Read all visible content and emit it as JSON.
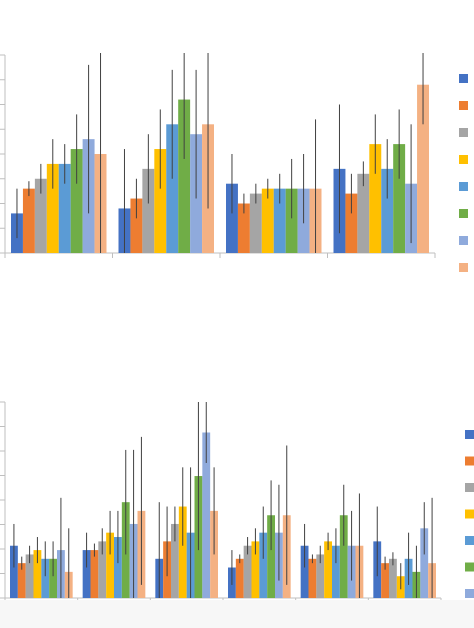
{
  "palette": [
    "#4472c4",
    "#ed7d31",
    "#a5a5a5",
    "#ffc000",
    "#5b9bd5",
    "#70ad47",
    "#8faadc",
    "#f4b183"
  ],
  "chart_data": [
    {
      "type": "bar",
      "title": "",
      "xlabel": "",
      "ylabel": "",
      "ylim": [
        0,
        8
      ],
      "grid": false,
      "legend_placement": "right",
      "categories": [
        "",
        "",
        "",
        ""
      ],
      "series": [
        {
          "values": [
            1.6,
            1.8,
            2.8,
            3.4
          ],
          "err": [
            1.0,
            2.4,
            1.2,
            2.6
          ]
        },
        {
          "values": [
            2.6,
            2.2,
            2.0,
            2.4
          ],
          "err": [
            0.3,
            0.8,
            0.4,
            0.8
          ]
        },
        {
          "values": [
            3.0,
            3.4,
            2.4,
            3.2
          ],
          "err": [
            0.6,
            1.4,
            0.4,
            0.5
          ]
        },
        {
          "values": [
            3.6,
            4.2,
            2.6,
            4.4
          ],
          "err": [
            1.0,
            1.6,
            0.4,
            1.2
          ]
        },
        {
          "values": [
            3.6,
            5.2,
            2.6,
            3.4
          ],
          "err": [
            0.8,
            2.2,
            0.6,
            1.2
          ]
        },
        {
          "values": [
            4.2,
            6.2,
            2.6,
            4.4
          ],
          "err": [
            1.4,
            2.4,
            1.2,
            1.4
          ]
        },
        {
          "values": [
            4.6,
            4.8,
            2.6,
            2.8
          ],
          "err": [
            3.0,
            2.6,
            1.4,
            2.4
          ]
        },
        {
          "values": [
            4.0,
            5.2,
            2.6,
            6.8
          ],
          "err": [
            4.4,
            3.4,
            2.8,
            1.6
          ]
        }
      ]
    },
    {
      "type": "bar",
      "title": "",
      "xlabel": "",
      "ylabel": "",
      "ylim": [
        0,
        9
      ],
      "grid": false,
      "legend_placement": "right",
      "categories": [
        "",
        "",
        "",
        "",
        "",
        ""
      ],
      "series": [
        {
          "values": [
            2.4,
            2.2,
            1.8,
            1.4,
            2.4,
            2.6
          ],
          "err": [
            1.0,
            0.8,
            2.6,
            0.8,
            1.0,
            1.6
          ]
        },
        {
          "values": [
            1.6,
            2.2,
            2.6,
            1.8,
            1.8,
            1.6
          ],
          "err": [
            0.3,
            0.3,
            1.6,
            0.2,
            0.2,
            0.3
          ]
        },
        {
          "values": [
            2.0,
            2.6,
            3.4,
            2.4,
            2.0,
            1.8
          ],
          "err": [
            0.4,
            0.6,
            0.8,
            0.4,
            0.4,
            0.3
          ]
        },
        {
          "values": [
            2.2,
            3.0,
            4.2,
            2.6,
            2.6,
            1.0
          ],
          "err": [
            0.6,
            1.0,
            1.8,
            0.6,
            0.4,
            0.6
          ]
        },
        {
          "values": [
            1.8,
            2.8,
            3.0,
            3.0,
            2.4,
            1.8
          ],
          "err": [
            0.8,
            1.2,
            3.0,
            1.2,
            0.8,
            1.2
          ]
        },
        {
          "values": [
            1.8,
            4.4,
            5.6,
            3.8,
            3.8,
            1.2
          ],
          "err": [
            0.8,
            2.4,
            3.4,
            1.6,
            1.4,
            1.2
          ]
        },
        {
          "values": [
            2.2,
            3.4,
            7.6,
            3.0,
            2.4,
            3.2
          ],
          "err": [
            2.4,
            3.4,
            1.4,
            2.2,
            1.6,
            1.2
          ]
        },
        {
          "values": [
            1.2,
            4.0,
            4.0,
            3.8,
            2.4,
            1.6
          ],
          "err": [
            2.0,
            3.4,
            2.0,
            3.2,
            2.4,
            3.0
          ]
        }
      ]
    }
  ]
}
